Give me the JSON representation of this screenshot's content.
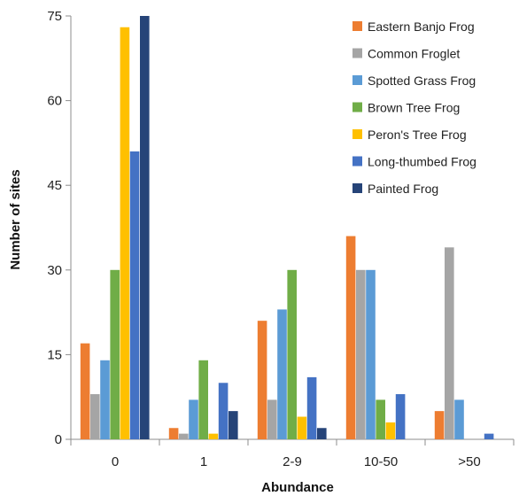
{
  "chart_data": {
    "type": "bar",
    "title": "",
    "xlabel": "Abundance",
    "ylabel": "Number of sites",
    "ylim": [
      0,
      75
    ],
    "yticks": [
      "0",
      "15",
      "30",
      "45",
      "60",
      "75"
    ],
    "grid": false,
    "legend_position": "top-right",
    "categories": [
      "0",
      "1",
      "2-9",
      "10-50",
      ">50"
    ],
    "series": [
      {
        "name": "Eastern Banjo Frog",
        "color": "#ED7D31",
        "values": [
          17,
          2,
          21,
          36,
          5
        ]
      },
      {
        "name": "Common Froglet",
        "color": "#A5A5A5",
        "values": [
          8,
          1,
          7,
          30,
          34
        ]
      },
      {
        "name": "Spotted Grass Frog",
        "color": "#5B9BD5",
        "values": [
          14,
          7,
          23,
          30,
          7
        ]
      },
      {
        "name": "Brown Tree Frog",
        "color": "#70AD47",
        "values": [
          30,
          14,
          30,
          7,
          0
        ]
      },
      {
        "name": "Peron's Tree Frog",
        "color": "#FFC000",
        "values": [
          73,
          1,
          4,
          3,
          0
        ]
      },
      {
        "name": "Long-thumbed Frog",
        "color": "#4472C4",
        "values": [
          51,
          10,
          11,
          8,
          1
        ]
      },
      {
        "name": "Painted Frog",
        "color": "#264478",
        "values": [
          75,
          5,
          2,
          0,
          0
        ]
      }
    ]
  }
}
